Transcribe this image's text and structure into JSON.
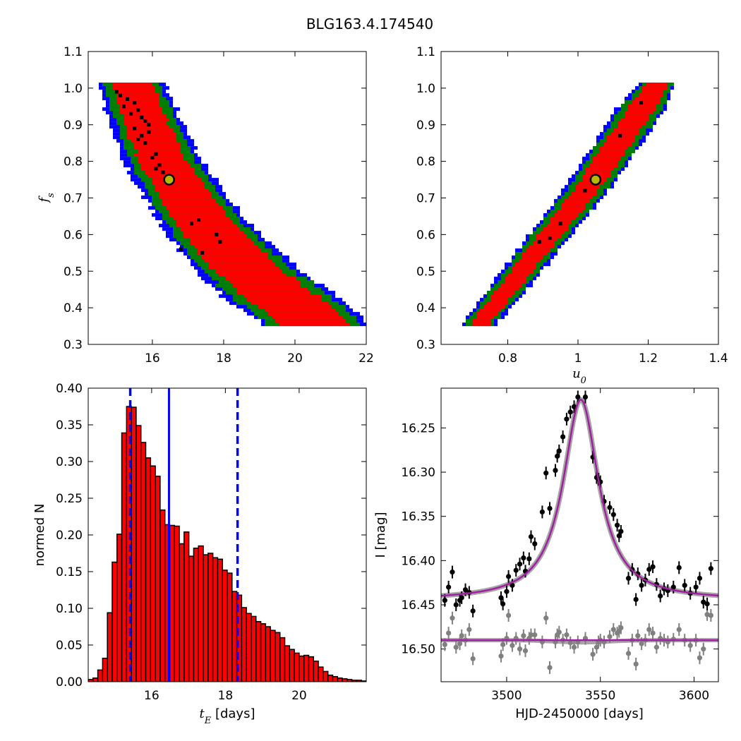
{
  "figure": {
    "title": "BLG163.4.174540"
  },
  "colors": {
    "sigma1": "#ff0000",
    "sigma2": "#008000",
    "sigma3": "#0000ff",
    "chain_sample": "#000000",
    "best_marker_fill": "#b8b800",
    "hist_bar": "#ff0000",
    "hist_edge": "#000000",
    "median_line": "#0000ff",
    "model_curve": "#a020a0",
    "data_points": "#000000",
    "residuals": "#808080"
  },
  "chart_data": [
    {
      "id": "fs_vs_tE",
      "type": "heatmap",
      "title": "",
      "xlabel": "",
      "ylabel": "f_s",
      "xlim": [
        14.2,
        22.0
      ],
      "ylim": [
        0.3,
        1.1
      ],
      "xticks": [
        16,
        18,
        20,
        22
      ],
      "yticks": [
        0.3,
        0.4,
        0.5,
        0.6,
        0.7,
        0.8,
        0.9,
        1.0,
        1.1
      ],
      "ytick_labels": [
        "0.3",
        "0.4",
        "0.5",
        "0.6",
        "0.7",
        "0.8",
        "0.9",
        "1.0",
        "1.1"
      ],
      "levels": [
        "1 sigma (red)",
        "2 sigma (green)",
        "3 sigma (blue)"
      ],
      "ridge": [
        {
          "y": 1.01,
          "x": 15.42,
          "w1": 0.55,
          "w2": 0.78,
          "w3": 0.95
        },
        {
          "y": 0.9,
          "x": 15.85,
          "w1": 0.62,
          "w2": 0.85,
          "w3": 1.02
        },
        {
          "y": 0.8,
          "x": 16.3,
          "w1": 0.68,
          "w2": 0.92,
          "w3": 1.1
        },
        {
          "y": 0.7,
          "x": 16.95,
          "w1": 0.75,
          "w2": 1.0,
          "w3": 1.18
        },
        {
          "y": 0.6,
          "x": 17.72,
          "w1": 0.85,
          "w2": 1.12,
          "w3": 1.32
        },
        {
          "y": 0.5,
          "x": 18.7,
          "w1": 0.98,
          "w2": 1.28,
          "w3": 1.48
        },
        {
          "y": 0.42,
          "x": 19.75,
          "w1": 1.05,
          "w2": 1.4,
          "w3": 1.62
        },
        {
          "y": 0.36,
          "x": 20.55,
          "w1": 0.95,
          "w2": 1.3,
          "w3": 1.5
        }
      ],
      "samples": [
        [
          15.0,
          0.99
        ],
        [
          15.1,
          0.98
        ],
        [
          15.3,
          0.97
        ],
        [
          15.5,
          0.96
        ],
        [
          15.2,
          0.95
        ],
        [
          15.6,
          0.94
        ],
        [
          15.4,
          0.93
        ],
        [
          15.7,
          0.92
        ],
        [
          15.8,
          0.91
        ],
        [
          15.9,
          0.9
        ],
        [
          15.5,
          0.89
        ],
        [
          15.9,
          0.88
        ],
        [
          15.7,
          0.87
        ],
        [
          15.6,
          0.86
        ],
        [
          15.8,
          0.85
        ],
        [
          16.1,
          0.82
        ],
        [
          16.0,
          0.81
        ],
        [
          16.2,
          0.79
        ],
        [
          16.1,
          0.78
        ],
        [
          16.3,
          0.77
        ],
        [
          17.3,
          0.64
        ],
        [
          17.1,
          0.63
        ],
        [
          17.8,
          0.6
        ],
        [
          17.9,
          0.58
        ],
        [
          16.8,
          0.56
        ],
        [
          17.4,
          0.55
        ]
      ],
      "best_fit": {
        "x": 16.47,
        "y": 0.75
      }
    },
    {
      "id": "fs_vs_u0",
      "type": "heatmap",
      "title": "",
      "xlabel": "u_0",
      "ylabel": "",
      "xlim": [
        0.61,
        1.4
      ],
      "ylim": [
        0.3,
        1.1
      ],
      "xticks": [
        0.8,
        1.0,
        1.2,
        1.4
      ],
      "yticks": [
        0.3,
        0.4,
        0.5,
        0.6,
        0.7,
        0.8,
        0.9,
        1.0,
        1.1
      ],
      "ytick_labels": [
        "0.3",
        "0.4",
        "0.5",
        "0.6",
        "0.7",
        "0.8",
        "0.9",
        "1.0",
        "1.1"
      ],
      "levels": [
        "1 sigma (red)",
        "2 sigma (green)",
        "3 sigma (blue)"
      ],
      "ridge": [
        {
          "y": 0.36,
          "x": 0.722,
          "w1": 0.026,
          "w2": 0.04,
          "w3": 0.05
        },
        {
          "y": 0.45,
          "x": 0.8,
          "w1": 0.03,
          "w2": 0.046,
          "w3": 0.056
        },
        {
          "y": 0.55,
          "x": 0.88,
          "w1": 0.032,
          "w2": 0.05,
          "w3": 0.06
        },
        {
          "y": 0.65,
          "x": 0.965,
          "w1": 0.034,
          "w2": 0.052,
          "w3": 0.062
        },
        {
          "y": 0.75,
          "x": 1.045,
          "w1": 0.036,
          "w2": 0.056,
          "w3": 0.066
        },
        {
          "y": 0.85,
          "x": 1.115,
          "w1": 0.038,
          "w2": 0.058,
          "w3": 0.068
        },
        {
          "y": 0.95,
          "x": 1.185,
          "w1": 0.04,
          "w2": 0.06,
          "w3": 0.07
        },
        {
          "y": 1.01,
          "x": 1.225,
          "w1": 0.03,
          "w2": 0.045,
          "w3": 0.052
        }
      ],
      "samples": [
        [
          1.18,
          0.96
        ],
        [
          1.12,
          0.87
        ],
        [
          0.92,
          0.59
        ],
        [
          0.89,
          0.58
        ],
        [
          1.02,
          0.72
        ],
        [
          0.95,
          0.63
        ]
      ],
      "best_fit": {
        "x": 1.05,
        "y": 0.75
      }
    },
    {
      "id": "tE_histogram",
      "type": "bar",
      "title": "",
      "xlabel": "t_E [days]",
      "ylabel": "normed N",
      "xlim": [
        14.28,
        21.82
      ],
      "ylim": [
        0.0,
        0.4
      ],
      "xticks": [
        16,
        18,
        20
      ],
      "yticks": [
        0.0,
        0.05,
        0.1,
        0.15,
        0.2,
        0.25,
        0.3,
        0.35,
        0.4
      ],
      "ytick_labels": [
        "0.00",
        "0.05",
        "0.10",
        "0.15",
        "0.20",
        "0.25",
        "0.30",
        "0.35",
        "0.40"
      ],
      "bin_start": 14.28,
      "bin_width": 0.13,
      "values": [
        0.003,
        0.005,
        0.016,
        0.032,
        0.094,
        0.163,
        0.201,
        0.339,
        0.375,
        0.374,
        0.349,
        0.326,
        0.305,
        0.294,
        0.28,
        0.234,
        0.214,
        0.213,
        0.212,
        0.188,
        0.204,
        0.171,
        0.182,
        0.185,
        0.173,
        0.175,
        0.169,
        0.167,
        0.152,
        0.148,
        0.123,
        0.118,
        0.101,
        0.093,
        0.089,
        0.082,
        0.079,
        0.075,
        0.07,
        0.067,
        0.06,
        0.049,
        0.044,
        0.039,
        0.035,
        0.036,
        0.034,
        0.028,
        0.02,
        0.014,
        0.009,
        0.007,
        0.005,
        0.004,
        0.003,
        0.002,
        0.002,
        0.001
      ],
      "median": 16.47,
      "interval": [
        15.42,
        18.33
      ]
    },
    {
      "id": "light_curve",
      "type": "scatter",
      "title": "",
      "xlabel": "HJD-2450000 [days]",
      "ylabel": "I [mag]",
      "xlim": [
        3465,
        3613
      ],
      "ylim": [
        16.537,
        16.205
      ],
      "xticks": [
        3500,
        3550,
        3600
      ],
      "yticks": [
        16.25,
        16.3,
        16.35,
        16.4,
        16.45,
        16.5
      ],
      "ytick_labels": [
        "16.25",
        "16.30",
        "16.35",
        "16.40",
        "16.45",
        "16.50"
      ],
      "model": {
        "t0": 3539.6,
        "peak": 16.218,
        "baseline": 16.445,
        "width": 11.5
      },
      "residual_baseline": 16.49,
      "data_points": [
        [
          3467,
          16.445
        ],
        [
          3469,
          16.43
        ],
        [
          3471,
          16.413
        ],
        [
          3473,
          16.45
        ],
        [
          3475,
          16.445
        ],
        [
          3476,
          16.442
        ],
        [
          3478,
          16.433
        ],
        [
          3480,
          16.436
        ],
        [
          3482,
          16.457
        ],
        [
          3497,
          16.442
        ],
        [
          3498,
          16.449
        ],
        [
          3500,
          16.435
        ],
        [
          3501,
          16.418
        ],
        [
          3503,
          16.428
        ],
        [
          3505,
          16.411
        ],
        [
          3507,
          16.404
        ],
        [
          3509,
          16.397
        ],
        [
          3510,
          16.412
        ],
        [
          3512,
          16.398
        ],
        [
          3513,
          16.373
        ],
        [
          3515,
          16.381
        ],
        [
          3519,
          16.345
        ],
        [
          3521,
          16.301
        ],
        [
          3523,
          16.341
        ],
        [
          3526,
          16.298
        ],
        [
          3527,
          16.282
        ],
        [
          3528,
          16.276
        ],
        [
          3530,
          16.26
        ],
        [
          3532,
          16.24
        ],
        [
          3534,
          16.232
        ],
        [
          3536,
          16.226
        ],
        [
          3538,
          16.215
        ],
        [
          3542,
          16.215
        ],
        [
          3546,
          16.283
        ],
        [
          3548,
          16.306
        ],
        [
          3549,
          16.308
        ],
        [
          3550,
          16.311
        ],
        [
          3552,
          16.333
        ],
        [
          3555,
          16.34
        ],
        [
          3557,
          16.348
        ],
        [
          3559,
          16.36
        ],
        [
          3560,
          16.372
        ],
        [
          3561,
          16.367
        ],
        [
          3565,
          16.42
        ],
        [
          3567,
          16.41
        ],
        [
          3569,
          16.444
        ],
        [
          3570,
          16.415
        ],
        [
          3572,
          16.428
        ],
        [
          3574,
          16.422
        ],
        [
          3576,
          16.41
        ],
        [
          3578,
          16.407
        ],
        [
          3580,
          16.427
        ],
        [
          3582,
          16.44
        ],
        [
          3584,
          16.432
        ],
        [
          3586,
          16.434
        ],
        [
          3589,
          16.43
        ],
        [
          3592,
          16.408
        ],
        [
          3595,
          16.428
        ],
        [
          3598,
          16.437
        ],
        [
          3601,
          16.43
        ],
        [
          3603,
          16.42
        ],
        [
          3605,
          16.447
        ],
        [
          3607,
          16.449
        ],
        [
          3609,
          16.409
        ]
      ],
      "residual_points": [
        [
          3467,
          16.495
        ],
        [
          3469,
          16.482
        ],
        [
          3471,
          16.465
        ],
        [
          3473,
          16.498
        ],
        [
          3475,
          16.494
        ],
        [
          3476,
          16.485
        ],
        [
          3478,
          16.49
        ],
        [
          3480,
          16.478
        ],
        [
          3482,
          16.511
        ],
        [
          3497,
          16.508
        ],
        [
          3498,
          16.495
        ],
        [
          3500,
          16.488
        ],
        [
          3501,
          16.462
        ],
        [
          3503,
          16.496
        ],
        [
          3505,
          16.488
        ],
        [
          3507,
          16.5
        ],
        [
          3509,
          16.485
        ],
        [
          3510,
          16.502
        ],
        [
          3512,
          16.488
        ],
        [
          3513,
          16.484
        ],
        [
          3515,
          16.484
        ],
        [
          3519,
          16.492
        ],
        [
          3521,
          16.465
        ],
        [
          3523,
          16.521
        ],
        [
          3526,
          16.492
        ],
        [
          3527,
          16.484
        ],
        [
          3528,
          16.481
        ],
        [
          3530,
          16.49
        ],
        [
          3532,
          16.484
        ],
        [
          3534,
          16.493
        ],
        [
          3536,
          16.498
        ],
        [
          3538,
          16.492
        ],
        [
          3542,
          16.488
        ],
        [
          3546,
          16.506
        ],
        [
          3548,
          16.498
        ],
        [
          3549,
          16.492
        ],
        [
          3550,
          16.49
        ],
        [
          3552,
          16.492
        ],
        [
          3555,
          16.486
        ],
        [
          3557,
          16.478
        ],
        [
          3559,
          16.482
        ],
        [
          3560,
          16.48
        ],
        [
          3561,
          16.476
        ],
        [
          3565,
          16.505
        ],
        [
          3567,
          16.49
        ],
        [
          3569,
          16.517
        ],
        [
          3570,
          16.485
        ],
        [
          3572,
          16.494
        ],
        [
          3574,
          16.49
        ],
        [
          3576,
          16.478
        ],
        [
          3578,
          16.482
        ],
        [
          3580,
          16.498
        ],
        [
          3582,
          16.488
        ],
        [
          3584,
          16.49
        ],
        [
          3586,
          16.492
        ],
        [
          3589,
          16.489
        ],
        [
          3592,
          16.478
        ],
        [
          3595,
          16.49
        ],
        [
          3598,
          16.496
        ],
        [
          3601,
          16.49
        ],
        [
          3603,
          16.51
        ],
        [
          3605,
          16.5
        ],
        [
          3607,
          16.461
        ],
        [
          3609,
          16.462
        ]
      ]
    }
  ]
}
